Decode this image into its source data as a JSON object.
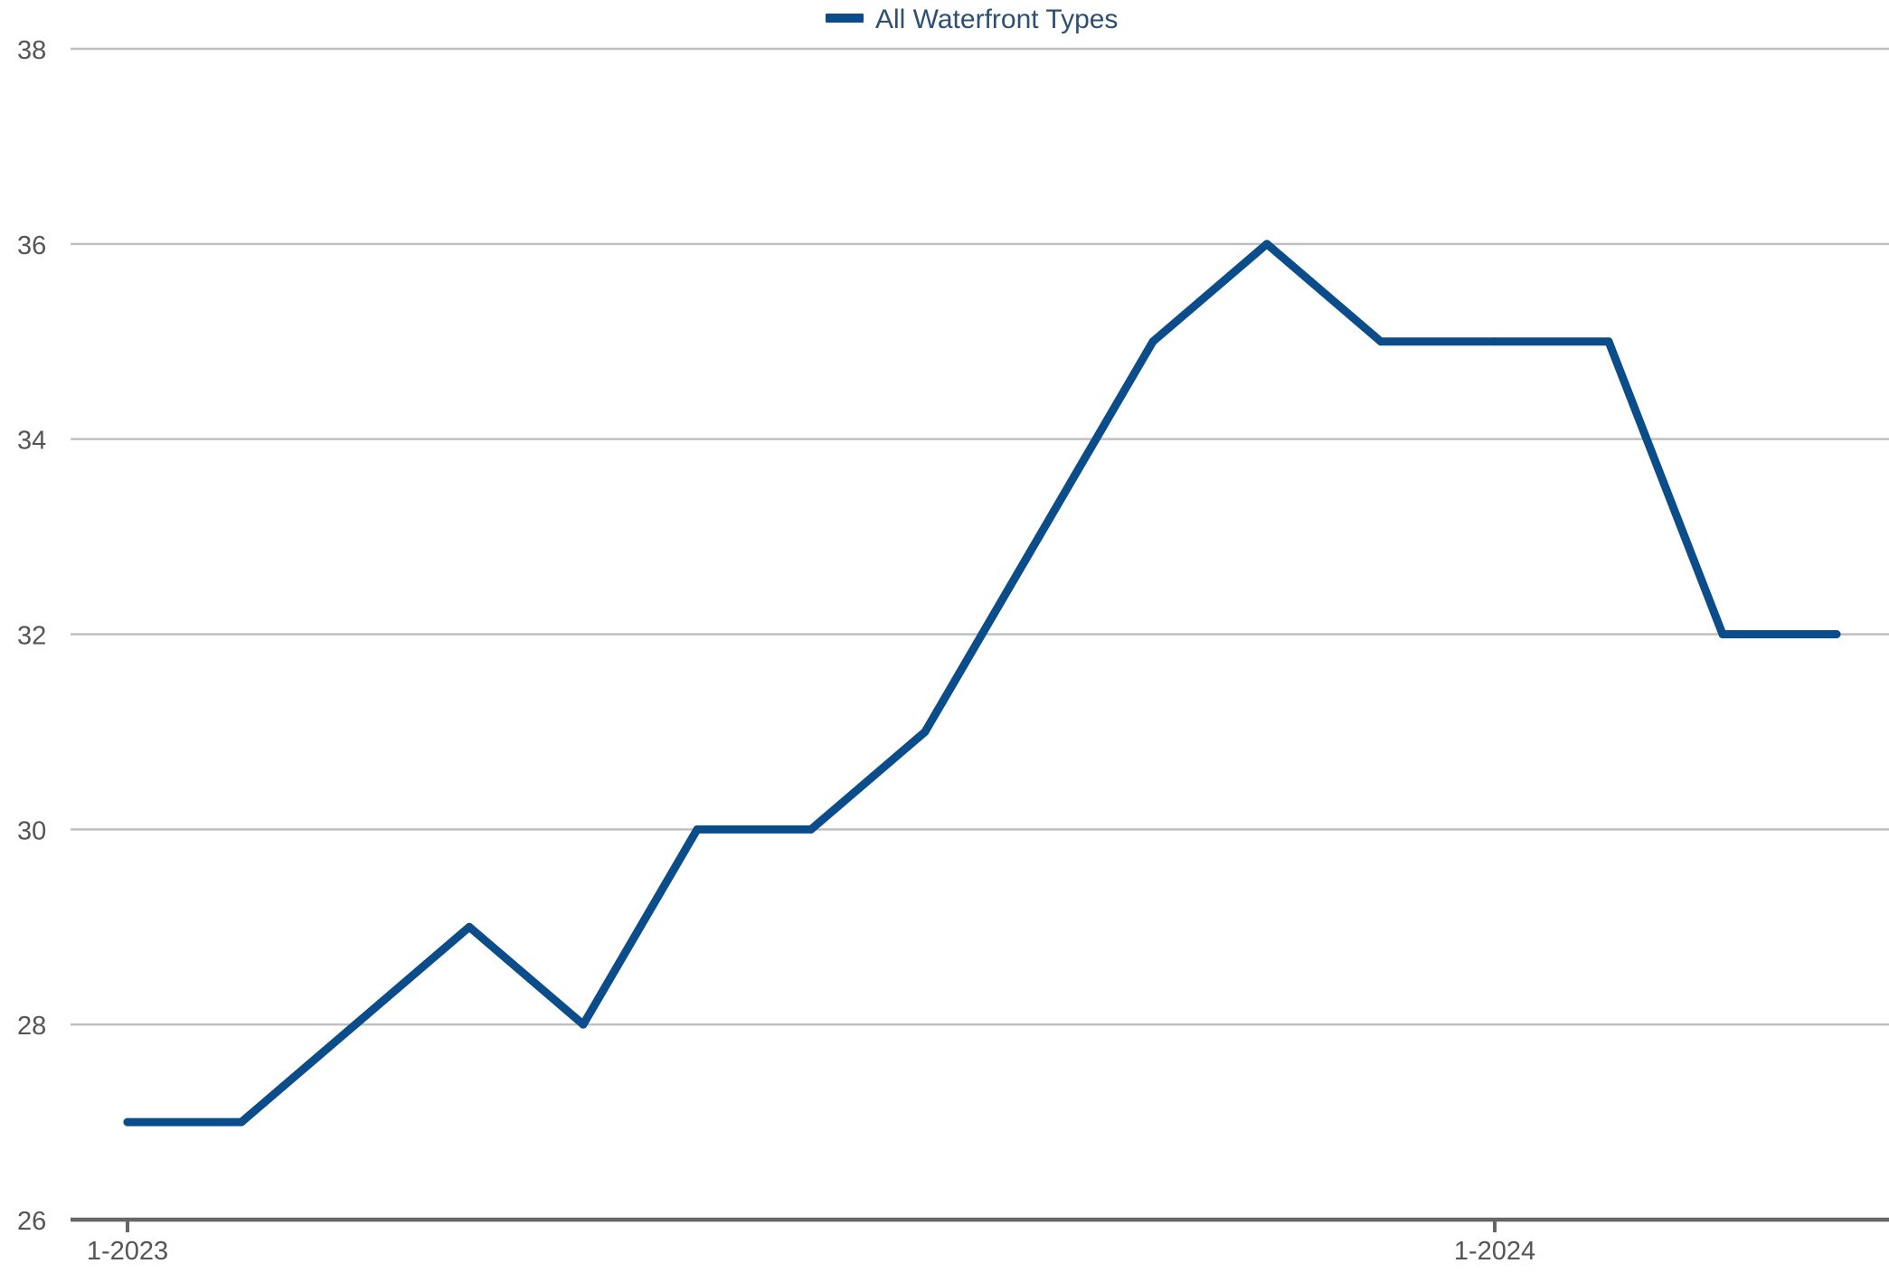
{
  "chart_data": {
    "type": "line",
    "title": "",
    "xlabel": "",
    "ylabel": "",
    "x": [
      "2023-01",
      "2023-02",
      "2023-03",
      "2023-04",
      "2023-05",
      "2023-06",
      "2023-07",
      "2023-08",
      "2023-09",
      "2023-10",
      "2023-11",
      "2023-12",
      "2024-01",
      "2024-02",
      "2024-03",
      "2024-04"
    ],
    "x_tick_labels": [
      {
        "x": "2023-01",
        "label": "1-2023"
      },
      {
        "x": "2024-01",
        "label": "1-2024"
      }
    ],
    "series": [
      {
        "name": "All Waterfront Types",
        "color": "#0b4d8a",
        "values": [
          27,
          27,
          28,
          29,
          28,
          30,
          30,
          31,
          33,
          35,
          36,
          35,
          35,
          35,
          32,
          32
        ]
      }
    ],
    "ylim": [
      26,
      38
    ],
    "y_ticks": [
      26,
      28,
      30,
      32,
      34,
      36,
      38
    ],
    "grid": true,
    "legend_position": "top-center",
    "colors": {
      "gridline": "#bfbfbf",
      "axis": "#666666",
      "tick_label": "#555555",
      "legend_text": "#2d4f74"
    }
  }
}
